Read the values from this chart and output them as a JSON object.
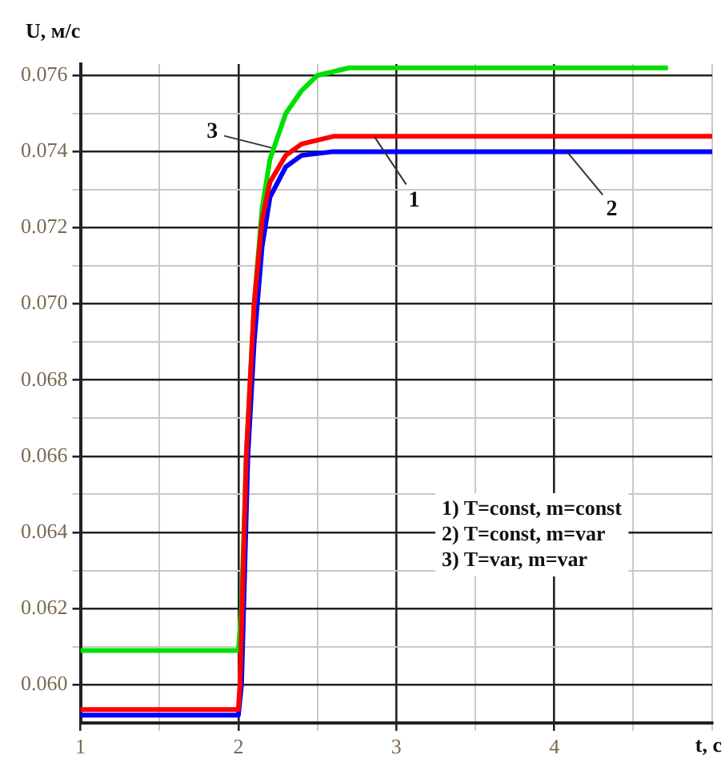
{
  "chart_data": {
    "type": "line",
    "ylabel": "U, м/с",
    "xlabel": "t, c",
    "xlim": [
      1,
      5
    ],
    "ylim": [
      0.059,
      0.0763
    ],
    "xticks": [
      1,
      {
        "value": 1.5,
        "label": null
      },
      2,
      {
        "value": 2.5,
        "label": null
      },
      3,
      {
        "value": 3.5,
        "label": null
      },
      4,
      {
        "value": 4.5,
        "label": null
      },
      {
        "value": 5,
        "label": null
      }
    ],
    "yticks": [
      {
        "value": 0.06,
        "label": "0.060"
      },
      {
        "value": 0.061,
        "label": null
      },
      0.062,
      {
        "value": 0.063,
        "label": null
      },
      0.064,
      {
        "value": 0.065,
        "label": null
      },
      0.066,
      {
        "value": 0.067,
        "label": null
      },
      0.068,
      {
        "value": 0.069,
        "label": null
      },
      {
        "value": 0.07,
        "label": "0.070"
      },
      {
        "value": 0.071,
        "label": null
      },
      0.072,
      {
        "value": 0.073,
        "label": null
      },
      0.074,
      {
        "value": 0.075,
        "label": null
      },
      0.076
    ],
    "grid": true,
    "marker": "none",
    "line_style": "solid",
    "series": [
      {
        "color": "#ff0000",
        "x": [
          1,
          2,
          2.01,
          2.05,
          2.1,
          2.15,
          2.2,
          2.3,
          2.4,
          2.6,
          3,
          5
        ],
        "values": [
          0.05935,
          0.05935,
          0.06,
          0.066,
          0.07,
          0.0722,
          0.0732,
          0.0739,
          0.0742,
          0.0744,
          0.0744,
          0.0744
        ]
      },
      {
        "color": "#0000ff",
        "x": [
          1,
          2,
          2.02,
          2.06,
          2.1,
          2.15,
          2.2,
          2.3,
          2.4,
          2.6,
          5
        ],
        "values": [
          0.0592,
          0.0592,
          0.06,
          0.066,
          0.069,
          0.0715,
          0.0728,
          0.0736,
          0.0739,
          0.074,
          0.074
        ]
      },
      {
        "color": "#00e000",
        "x": [
          1,
          2,
          2.02,
          2.05,
          2.1,
          2.15,
          2.2,
          2.3,
          2.4,
          2.5,
          2.7,
          4.72
        ],
        "values": [
          0.0609,
          0.0609,
          0.062,
          0.066,
          0.07,
          0.0725,
          0.0738,
          0.075,
          0.0756,
          0.076,
          0.0762,
          0.0762
        ]
      }
    ],
    "annotations": [
      {
        "text": "1",
        "x": 2.86,
        "y": 0.0744
      },
      {
        "text": "2",
        "x": 4.08,
        "y": 0.074
      },
      {
        "text": "3",
        "x": 2.21,
        "y": 0.0741
      },
      "1) T=const, m=const",
      "2) T=const, m=var",
      "3) T=var, m=var"
    ]
  }
}
